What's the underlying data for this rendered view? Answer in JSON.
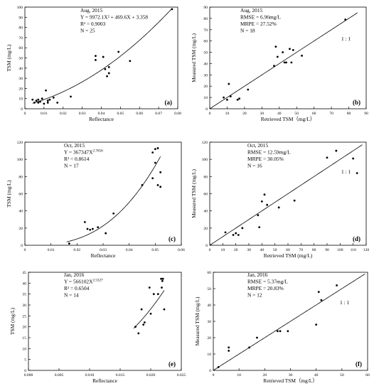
{
  "chart_data": [
    {
      "type": "scatter",
      "id": "a",
      "panel_label": "(a)",
      "xlabel": "Reflectance",
      "ylabel": "TSM (mg/L)",
      "xlim": [
        0,
        0.08
      ],
      "ylim": [
        0,
        100
      ],
      "xticks": [
        0,
        0.01,
        0.02,
        0.03,
        0.04,
        0.05,
        0.06,
        0.07,
        0.08
      ],
      "xtick_labels": [
        "0",
        "0.01",
        "0.02",
        "0.03",
        "0.04",
        "0.05",
        "0.06",
        "0.07",
        "0.08"
      ],
      "yticks": [
        0,
        10,
        20,
        30,
        40,
        50,
        60,
        70,
        80,
        90,
        100
      ],
      "ytick_labels": [
        "0",
        "10",
        "20",
        "30",
        "40",
        "50",
        "60",
        "70",
        "80",
        "90",
        "100"
      ],
      "annotations": [
        "Aug, 2015",
        "Y = 9972.1X² + 469.6X + 3.358",
        "R² = 0.9003",
        "N = 25"
      ],
      "points": [
        {
          "x": 0.004,
          "y": 9
        },
        {
          "x": 0.005,
          "y": 6
        },
        {
          "x": 0.006,
          "y": 8
        },
        {
          "x": 0.007,
          "y": 9
        },
        {
          "x": 0.007,
          "y": 6
        },
        {
          "x": 0.008,
          "y": 7
        },
        {
          "x": 0.009,
          "y": 10
        },
        {
          "x": 0.01,
          "y": 5
        },
        {
          "x": 0.011,
          "y": 18
        },
        {
          "x": 0.012,
          "y": 8
        },
        {
          "x": 0.012,
          "y": 6
        },
        {
          "x": 0.013,
          "y": 9
        },
        {
          "x": 0.015,
          "y": 11
        },
        {
          "x": 0.017,
          "y": 6
        },
        {
          "x": 0.024,
          "y": 12
        },
        {
          "x": 0.037,
          "y": 52
        },
        {
          "x": 0.037,
          "y": 48
        },
        {
          "x": 0.041,
          "y": 51
        },
        {
          "x": 0.042,
          "y": 39
        },
        {
          "x": 0.043,
          "y": 32
        },
        {
          "x": 0.044,
          "y": 35
        },
        {
          "x": 0.044,
          "y": 41
        },
        {
          "x": 0.049,
          "y": 56
        },
        {
          "x": 0.055,
          "y": 47
        },
        {
          "x": 0.077,
          "y": 98
        }
      ],
      "fit": {
        "kind": "poly2",
        "coeffs": [
          3.358,
          469.6,
          9972.1
        ],
        "range": [
          0.004,
          0.077
        ]
      }
    },
    {
      "type": "scatter",
      "id": "b",
      "panel_label": "(b)",
      "xlabel": "Retrieved TSM（mg/L）",
      "ylabel": "Measured TSM (mg/L)",
      "xlim": [
        0,
        90
      ],
      "ylim": [
        0,
        90
      ],
      "xticks": [
        0,
        10,
        20,
        30,
        40,
        50,
        60,
        70,
        80,
        90
      ],
      "xtick_labels": [
        "0",
        "10",
        "20",
        "30",
        "40",
        "50",
        "60",
        "70",
        "80",
        "90"
      ],
      "yticks": [
        0,
        10,
        20,
        30,
        40,
        50,
        60,
        70,
        80,
        90
      ],
      "ytick_labels": [
        "0",
        "10",
        "20",
        "30",
        "40",
        "50",
        "60",
        "70",
        "80",
        "90"
      ],
      "annotations": [
        "Aug, 2015",
        "RMSE = 6.96mg/L",
        "MRPE = 27.52%",
        "N = 18"
      ],
      "line_label": "1 : 1",
      "points": [
        {
          "x": 8,
          "y": 10
        },
        {
          "x": 10,
          "y": 8
        },
        {
          "x": 11,
          "y": 22
        },
        {
          "x": 12,
          "y": 11
        },
        {
          "x": 16,
          "y": 8
        },
        {
          "x": 17,
          "y": 9
        },
        {
          "x": 22,
          "y": 17
        },
        {
          "x": 37,
          "y": 38
        },
        {
          "x": 38,
          "y": 55
        },
        {
          "x": 39,
          "y": 46
        },
        {
          "x": 42,
          "y": 50
        },
        {
          "x": 43,
          "y": 41
        },
        {
          "x": 44,
          "y": 41
        },
        {
          "x": 46,
          "y": 53
        },
        {
          "x": 47,
          "y": 41
        },
        {
          "x": 48,
          "y": 52
        },
        {
          "x": 53,
          "y": 47
        },
        {
          "x": 78,
          "y": 79
        }
      ],
      "fit": {
        "kind": "identity",
        "range": [
          0,
          85
        ]
      }
    },
    {
      "type": "scatter",
      "id": "c",
      "panel_label": "(c)",
      "xlabel": "Reflectance",
      "ylabel": "TSM (mg/L)",
      "xlim": [
        0,
        0.06
      ],
      "ylim": [
        0,
        120
      ],
      "xticks": [
        0,
        0.01,
        0.02,
        0.03,
        0.04,
        0.05,
        0.06
      ],
      "xtick_labels": [
        "0",
        "0.01",
        "0.02",
        "0.03",
        "0.04",
        "0.05",
        "0.06"
      ],
      "yticks": [
        0,
        20,
        40,
        60,
        80,
        100,
        120
      ],
      "ytick_labels": [
        "0",
        "20",
        "40",
        "60",
        "80",
        "100",
        "120"
      ],
      "annotations": [
        "Oct, 2015",
        "Y = 367347X^2.7656",
        "R² = 0.8614",
        "N = 17"
      ],
      "points": [
        {
          "x": 0.017,
          "y": 2
        },
        {
          "x": 0.023,
          "y": 27
        },
        {
          "x": 0.024,
          "y": 19
        },
        {
          "x": 0.025,
          "y": 18
        },
        {
          "x": 0.026,
          "y": 19
        },
        {
          "x": 0.028,
          "y": 21
        },
        {
          "x": 0.031,
          "y": 14
        },
        {
          "x": 0.034,
          "y": 37
        },
        {
          "x": 0.045,
          "y": 70
        },
        {
          "x": 0.049,
          "y": 108
        },
        {
          "x": 0.049,
          "y": 78
        },
        {
          "x": 0.05,
          "y": 96
        },
        {
          "x": 0.05,
          "y": 112
        },
        {
          "x": 0.051,
          "y": 70
        },
        {
          "x": 0.051,
          "y": 113
        },
        {
          "x": 0.052,
          "y": 85
        },
        {
          "x": 0.052,
          "y": 68
        }
      ],
      "fit": {
        "kind": "power",
        "a": 367347,
        "b": 2.7656,
        "range": [
          0.016,
          0.052
        ]
      }
    },
    {
      "type": "scatter",
      "id": "d",
      "panel_label": "(d)",
      "xlabel": "Retrieved TSM (mg/L)",
      "ylabel": "Measured TSM (mg/L)",
      "xlim": [
        0,
        120
      ],
      "ylim": [
        0,
        120
      ],
      "xticks": [
        0,
        10,
        20,
        30,
        40,
        50,
        60,
        70,
        80,
        90,
        100,
        110,
        120
      ],
      "xtick_labels": [
        "0",
        "10",
        "20",
        "30",
        "40",
        "50",
        "60",
        "70",
        "80",
        "90",
        "100",
        "110",
        "120"
      ],
      "yticks": [
        0,
        20,
        40,
        60,
        80,
        100,
        120
      ],
      "ytick_labels": [
        "0",
        "20",
        "40",
        "60",
        "80",
        "100",
        "120"
      ],
      "annotations": [
        "Oct, 2015",
        "RMSE = 12.59mg/L",
        "MRPE = 30.05%",
        "N = 16"
      ],
      "line_label": "1 : 1",
      "points": [
        {
          "x": 12,
          "y": 15
        },
        {
          "x": 18,
          "y": 12
        },
        {
          "x": 20,
          "y": 14
        },
        {
          "x": 22,
          "y": 12
        },
        {
          "x": 25,
          "y": 20
        },
        {
          "x": 37,
          "y": 35
        },
        {
          "x": 38,
          "y": 21
        },
        {
          "x": 40,
          "y": 51
        },
        {
          "x": 42,
          "y": 59
        },
        {
          "x": 44,
          "y": 47
        },
        {
          "x": 53,
          "y": 44
        },
        {
          "x": 65,
          "y": 52
        },
        {
          "x": 90,
          "y": 102
        },
        {
          "x": 97,
          "y": 110
        },
        {
          "x": 110,
          "y": 101
        },
        {
          "x": 113,
          "y": 84
        }
      ],
      "fit": {
        "kind": "identity",
        "range": [
          0,
          117
        ]
      }
    },
    {
      "type": "scatter",
      "id": "e",
      "panel_label": "(e)",
      "xlabel": "Reflectance",
      "ylabel": "TSM (mg/L)",
      "xlim": [
        0,
        0.025
      ],
      "ylim": [
        0,
        45
      ],
      "xticks": [
        0,
        0.005,
        0.01,
        0.015,
        0.02,
        0.025
      ],
      "xtick_labels": [
        "0.000",
        "0.005",
        "0.010",
        "0.015",
        "0.020",
        "0.025"
      ],
      "yticks": [
        0,
        5,
        10,
        15,
        20,
        25,
        30,
        35,
        40,
        45
      ],
      "ytick_labels": [
        "0",
        "5",
        "10",
        "15",
        "20",
        "25",
        "30",
        "35",
        "40",
        "45"
      ],
      "annotations": [
        "Jan, 2016",
        "Y = 566102X^2.5327",
        "R² = 0.6504",
        "N = 14"
      ],
      "points": [
        {
          "x": 0.0175,
          "y": 20
        },
        {
          "x": 0.018,
          "y": 17
        },
        {
          "x": 0.0185,
          "y": 28
        },
        {
          "x": 0.0188,
          "y": 21
        },
        {
          "x": 0.019,
          "y": 22
        },
        {
          "x": 0.0198,
          "y": 38
        },
        {
          "x": 0.02,
          "y": 26
        },
        {
          "x": 0.0205,
          "y": 35
        },
        {
          "x": 0.0212,
          "y": 35
        },
        {
          "x": 0.0217,
          "y": 42
        },
        {
          "x": 0.0219,
          "y": 41
        },
        {
          "x": 0.022,
          "y": 42
        },
        {
          "x": 0.0222,
          "y": 28
        },
        {
          "x": 0.0218,
          "y": 38
        }
      ],
      "fit": {
        "kind": "power",
        "a": 566102,
        "b": 2.5327,
        "range": [
          0.0172,
          0.0222
        ]
      }
    },
    {
      "type": "scatter",
      "id": "f",
      "panel_label": "(f)",
      "xlabel": "Retrieved TSM（mg/L）",
      "ylabel": "Measured TSM (mg/L)",
      "xlim": [
        0,
        60
      ],
      "ylim": [
        0,
        60
      ],
      "xticks": [
        0,
        10,
        20,
        30,
        40,
        50,
        60
      ],
      "xtick_labels": [
        "0",
        "10",
        "20",
        "30",
        "40",
        "50",
        "60"
      ],
      "yticks": [
        0,
        10,
        20,
        30,
        40,
        50,
        60
      ],
      "ytick_labels": [
        "0",
        "10",
        "20",
        "30",
        "40",
        "50",
        "60"
      ],
      "annotations": [
        "Jan, 2016",
        "RMSE = 5.37mg/L",
        "MRPE = 20.83%",
        "N = 12"
      ],
      "line_label": "1 : 1",
      "points": [
        {
          "x": 2,
          "y": 2
        },
        {
          "x": 6,
          "y": 12
        },
        {
          "x": 6,
          "y": 14
        },
        {
          "x": 14,
          "y": 14
        },
        {
          "x": 17,
          "y": 20
        },
        {
          "x": 25,
          "y": 24
        },
        {
          "x": 26,
          "y": 24
        },
        {
          "x": 29,
          "y": 24
        },
        {
          "x": 40,
          "y": 28
        },
        {
          "x": 41,
          "y": 48
        },
        {
          "x": 42,
          "y": 43
        },
        {
          "x": 48,
          "y": 52
        }
      ],
      "fit": {
        "kind": "identity",
        "range": [
          0,
          59
        ]
      }
    }
  ]
}
